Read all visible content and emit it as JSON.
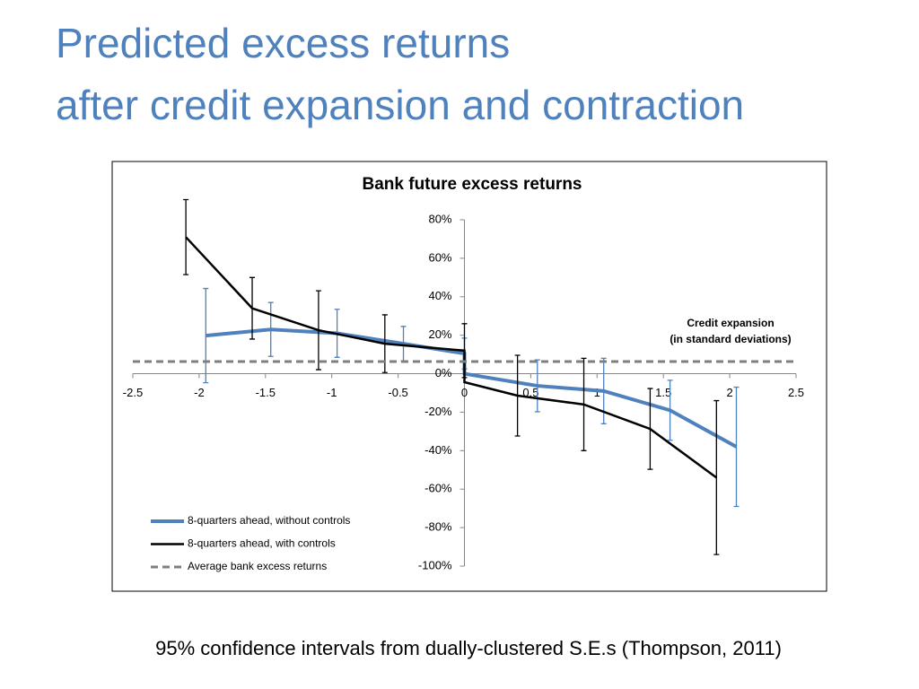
{
  "slide": {
    "title_lines": [
      "Predicted excess returns",
      "after credit expansion and contraction"
    ],
    "footnote": "95% confidence intervals from dually-clustered S.E.s (Thompson, 2011)"
  },
  "chart_data": {
    "type": "line",
    "title": "Bank future excess returns",
    "x_label": [
      "Credit expansion",
      "(in standard deviations)"
    ],
    "xlim": [
      -2.5,
      2.5
    ],
    "xticks": [
      -2.5,
      -2,
      -1.5,
      -1,
      -0.5,
      0,
      0.5,
      1,
      1.5,
      2,
      2.5
    ],
    "ylim": [
      -100,
      80
    ],
    "yticks": [
      {
        "value": -100,
        "label": "-100%"
      },
      {
        "value": -80,
        "label": "-80%"
      },
      {
        "value": -60,
        "label": "-60%"
      },
      {
        "value": -40,
        "label": "-40%"
      },
      {
        "value": -20,
        "label": "-20%"
      },
      {
        "value": 0,
        "label": "0%"
      },
      {
        "value": 20,
        "label": "20%"
      },
      {
        "value": 40,
        "label": "40%"
      },
      {
        "value": 60,
        "label": "60%"
      },
      {
        "value": 80,
        "label": "80%"
      }
    ],
    "grid": false,
    "legend": "lower left",
    "series": [
      {
        "name": "8-quarters ahead, without controls",
        "color": "#4f81bd",
        "dash": false,
        "x": [
          -1.95,
          -1.46,
          -0.96,
          -0.46,
          0,
          0,
          0.55,
          1.05,
          1.55,
          2.05
        ],
        "values": [
          19.8,
          23,
          21,
          15.6,
          10.5,
          0,
          -6.3,
          -9,
          -19,
          -38
        ],
        "errors": [
          24.5,
          14,
          12.5,
          9,
          8,
          null,
          13.5,
          17,
          15.6,
          31
        ]
      },
      {
        "name": "8-quarters ahead, with controls",
        "color": "#000000",
        "dash": false,
        "x": [
          -2.1,
          -1.6,
          -1.1,
          -0.6,
          0,
          0,
          0.4,
          0.9,
          1.4,
          1.9
        ],
        "values": [
          71,
          34,
          22.6,
          15.6,
          12,
          -4.4,
          -11.4,
          -16,
          -28.7,
          -54
        ],
        "errors": [
          19.5,
          16,
          20.5,
          15,
          14,
          null,
          21,
          24,
          21,
          40
        ]
      },
      {
        "name": "Average bank excess returns",
        "color": "#7f7f7f",
        "dash": true,
        "x": [
          -2.5,
          2.5
        ],
        "values": [
          6.3,
          6.3
        ]
      }
    ]
  }
}
